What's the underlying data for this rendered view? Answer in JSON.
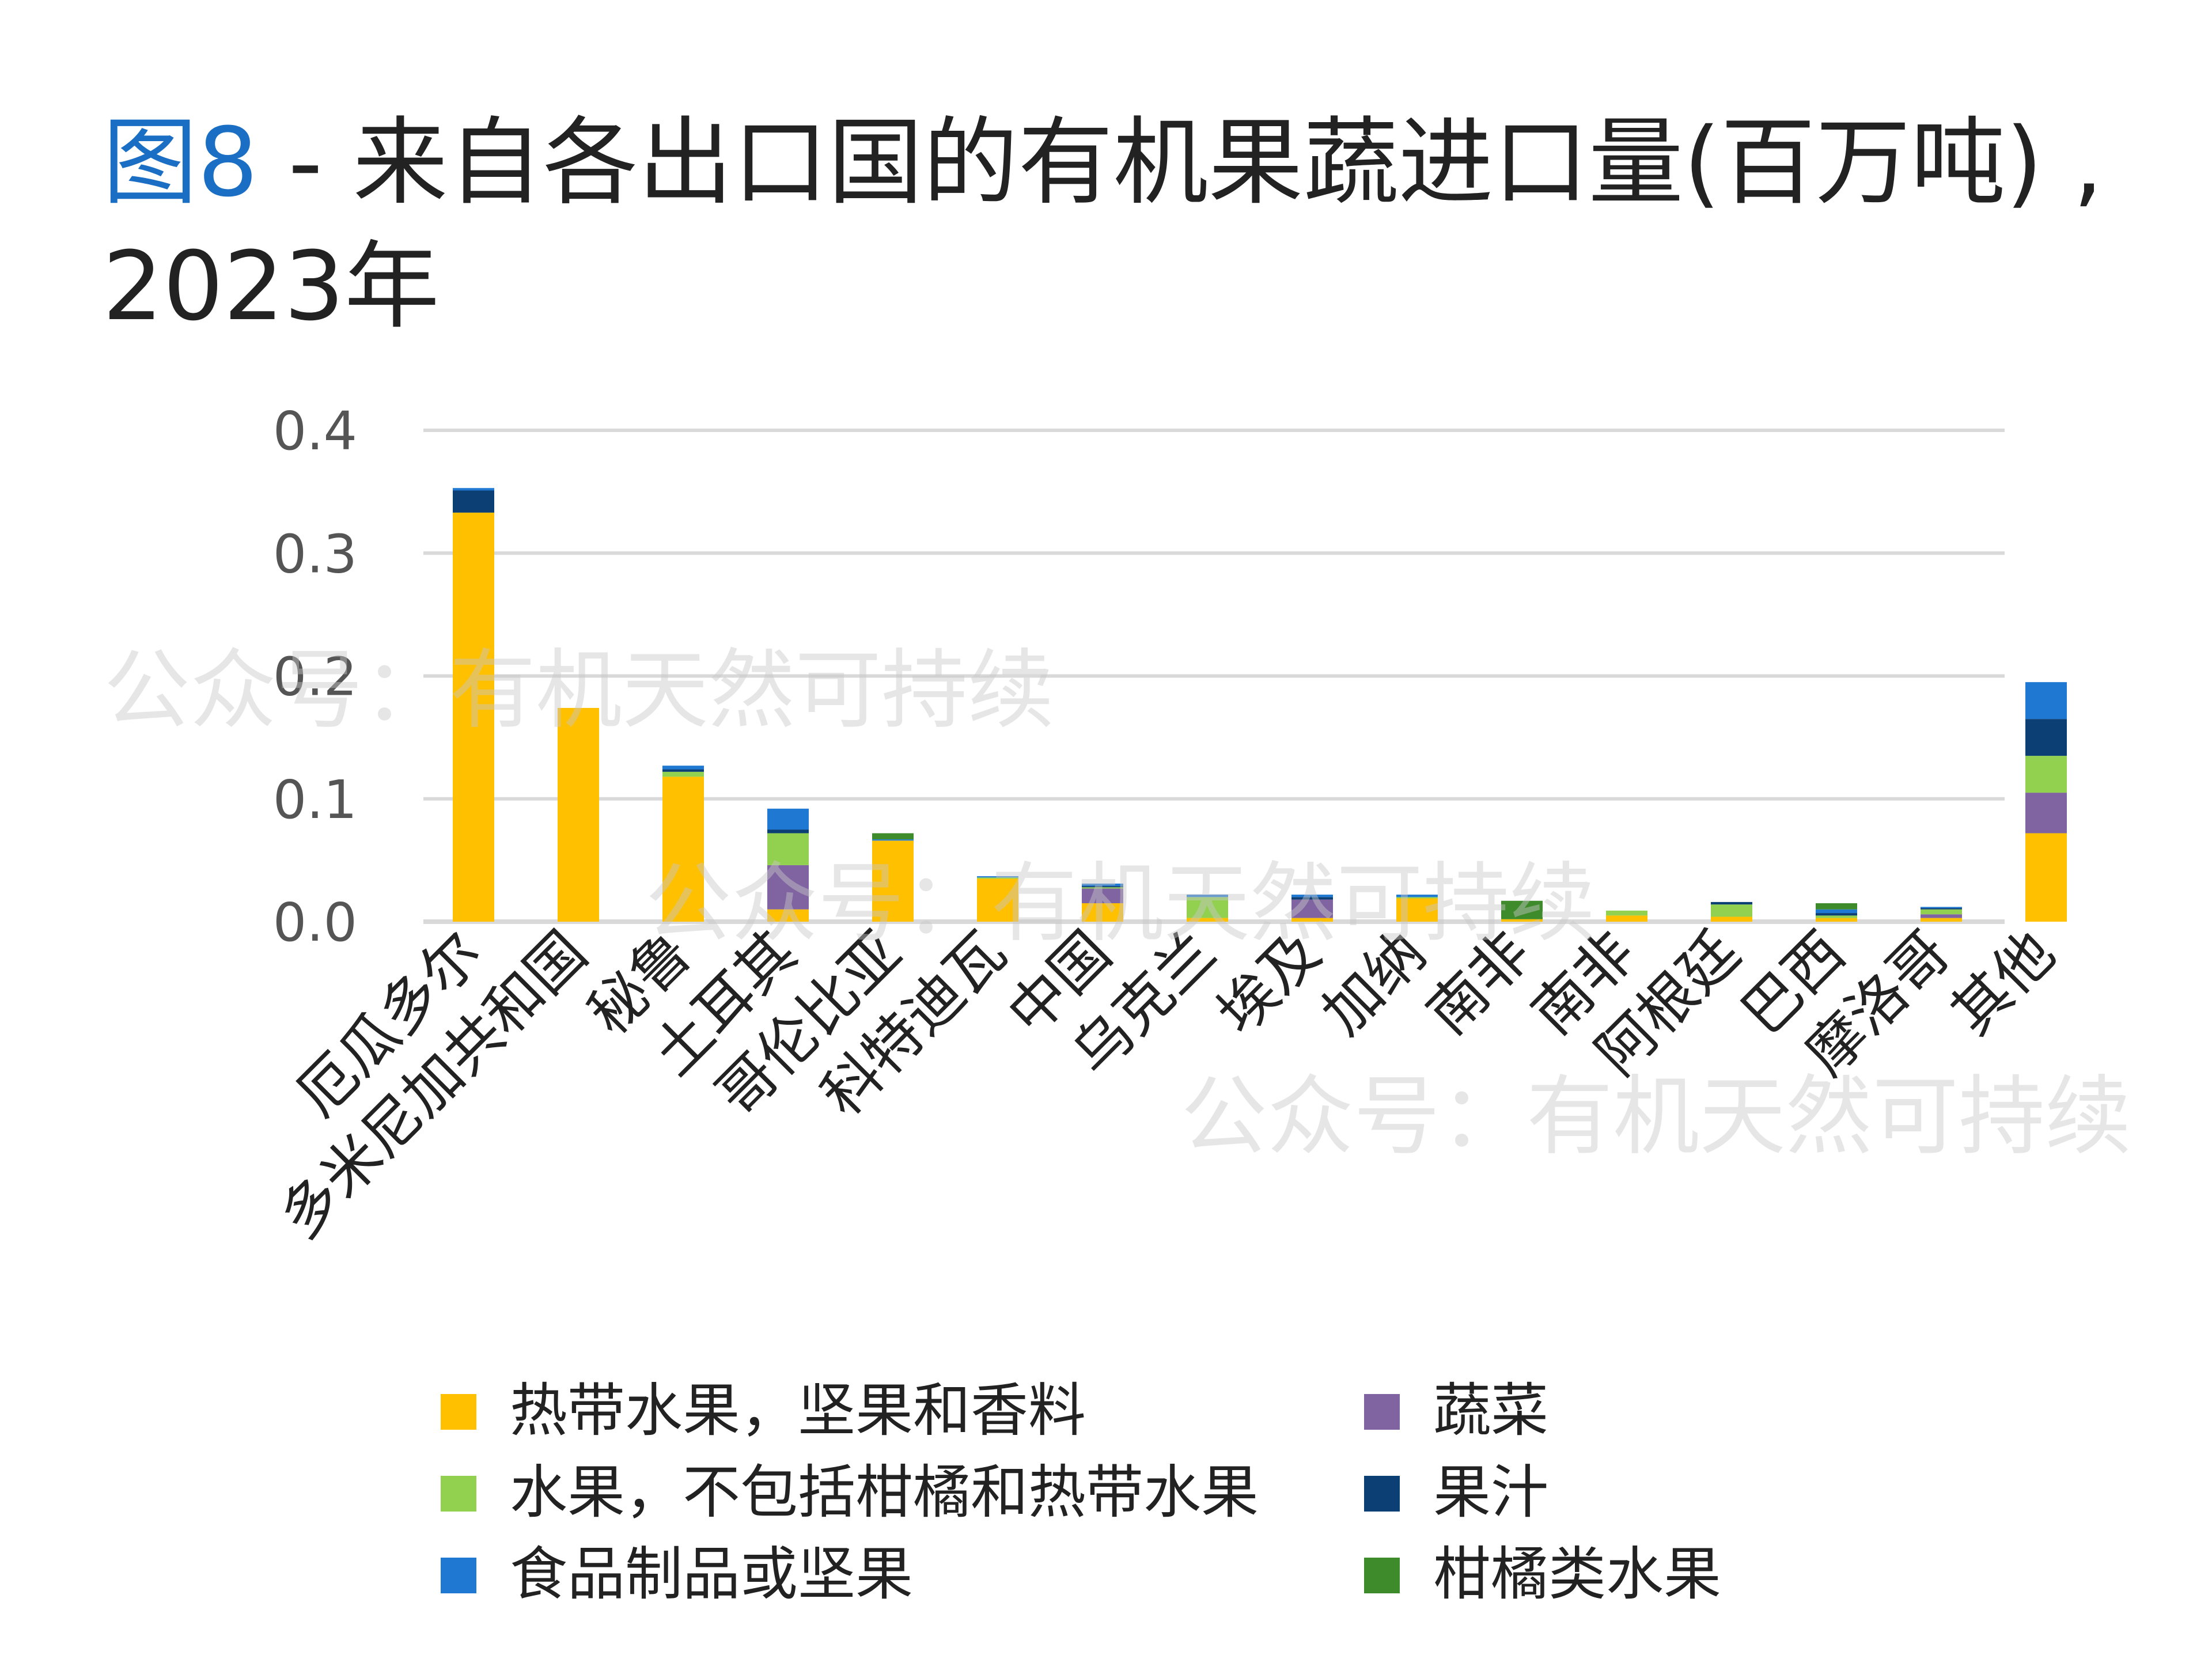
{
  "title": {
    "fig_label": "图8",
    "text": " - 来自各出口国的有机果蔬进口量(百万吨) ,",
    "year": "2023年"
  },
  "watermark": "公众号：有机天然可持续",
  "colors": {
    "tropical": "#ffc000",
    "vegetables": "#8064a2",
    "fruit": "#92d050",
    "juice": "#0c3f73",
    "food_products": "#1f78d1",
    "citrus": "#3e8b2b",
    "grid": "#d9d9d9"
  },
  "chart_data": {
    "type": "bar",
    "stacked": true,
    "categories": [
      "厄瓜多尔",
      "多米尼加共和国",
      "秘鲁",
      "土耳其",
      "哥伦比亚",
      "科特迪瓦",
      "中国",
      "乌克兰",
      "埃及",
      "加纳",
      "南非",
      "南非",
      "阿根廷",
      "巴西",
      "摩洛哥",
      "其他"
    ],
    "ylim": [
      0,
      0.4
    ],
    "yticks": [
      "0.0",
      "0.1",
      "0.2",
      "0.3",
      "0.4"
    ],
    "grid": true,
    "legend_position": "bottom",
    "series": [
      {
        "name": "热带水果，坚果和香料",
        "key": "tropical",
        "values": [
          0.333,
          0.174,
          0.118,
          0.01,
          0.066,
          0.035,
          0.015,
          0.003,
          0.003,
          0.019,
          0.002,
          0.005,
          0.004,
          0.003,
          0.003,
          0.072
        ]
      },
      {
        "name": "蔬菜",
        "key": "vegetables",
        "values": [
          0.0,
          0.0,
          0.0,
          0.036,
          0.0,
          0.0,
          0.012,
          0.0,
          0.015,
          0.0,
          0.0,
          0.0,
          0.0,
          0.0,
          0.003,
          0.033
        ]
      },
      {
        "name": "水果，不包括柑橘和热带水果",
        "key": "fruit",
        "values": [
          0.0,
          0.0,
          0.004,
          0.026,
          0.0,
          0.001,
          0.001,
          0.017,
          0.0,
          0.001,
          0.0,
          0.004,
          0.01,
          0.002,
          0.004,
          0.03
        ]
      },
      {
        "name": "果汁",
        "key": "juice",
        "values": [
          0.018,
          0.0,
          0.002,
          0.003,
          0.0,
          0.0,
          0.001,
          0.0,
          0.002,
          0.0,
          0.0,
          0.0,
          0.002,
          0.002,
          0.001,
          0.03
        ]
      },
      {
        "name": "食品制品或坚果",
        "key": "food_products",
        "values": [
          0.002,
          0.0,
          0.003,
          0.017,
          0.001,
          0.001,
          0.002,
          0.002,
          0.002,
          0.002,
          0.0,
          0.0,
          0.0,
          0.003,
          0.001,
          0.03
        ]
      },
      {
        "name": "柑橘类水果",
        "key": "citrus",
        "values": [
          0.0,
          0.0,
          0.0,
          0.0,
          0.005,
          0.0,
          0.0,
          0.0,
          0.0,
          0.0,
          0.015,
          0.0,
          0.0,
          0.005,
          0.0,
          0.0
        ]
      }
    ],
    "stack_order": [
      "tropical",
      "vegetables",
      "fruit",
      "juice",
      "food_products",
      "citrus"
    ],
    "legend": {
      "left": [
        "tropical",
        "fruit",
        "food_products"
      ],
      "right": [
        "vegetables",
        "juice",
        "citrus"
      ]
    }
  }
}
